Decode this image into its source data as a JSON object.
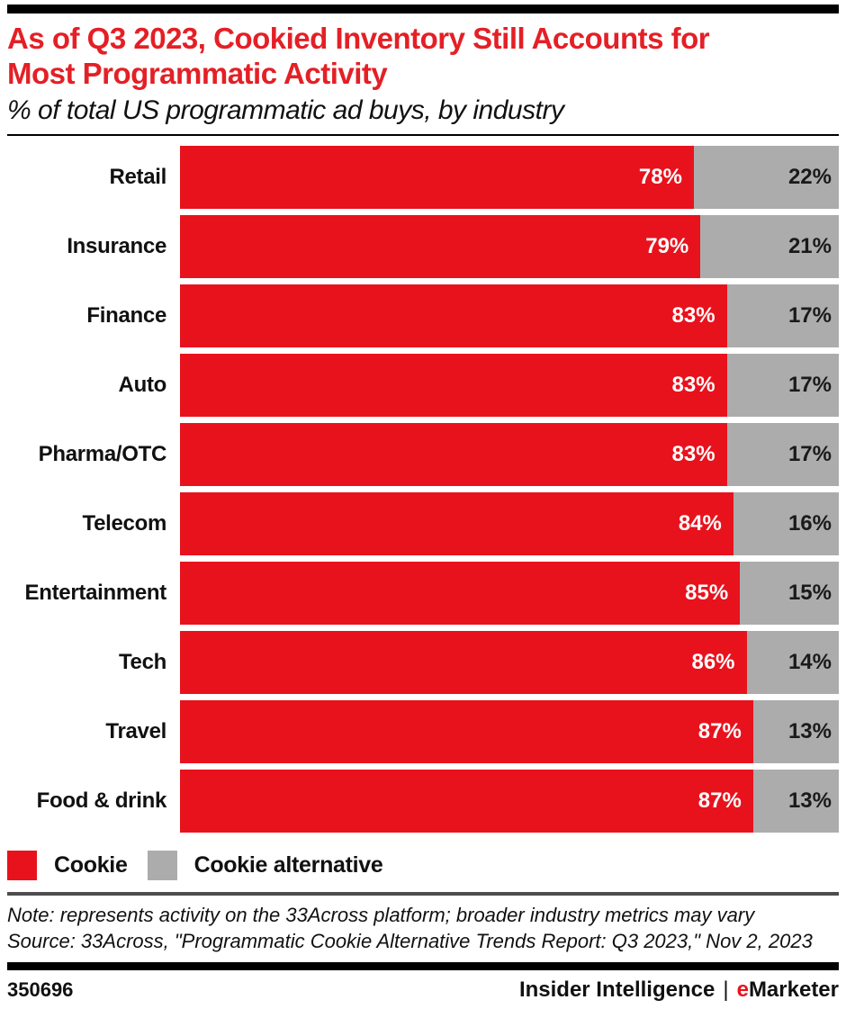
{
  "header": {
    "title_line1": "As of Q3 2023, Cookied Inventory Still Accounts for",
    "title_line2": "Most Programmatic Activity",
    "subtitle": "% of total US programmatic ad buys, by industry"
  },
  "chart_data": {
    "type": "bar",
    "orientation": "horizontal",
    "stacked": true,
    "title": "As of Q3 2023, Cookied Inventory Still Accounts for Most Programmatic Activity",
    "subtitle": "% of total US programmatic ad buys, by industry",
    "categories": [
      "Retail",
      "Insurance",
      "Finance",
      "Auto",
      "Pharma/OTC",
      "Telecom",
      "Entertainment",
      "Tech",
      "Travel",
      "Food & drink"
    ],
    "series": [
      {
        "name": "Cookie",
        "color": "#E8121D",
        "values": [
          78,
          79,
          83,
          83,
          83,
          84,
          85,
          86,
          87,
          87
        ]
      },
      {
        "name": "Cookie alternative",
        "color": "#ACACAC",
        "values": [
          22,
          21,
          17,
          17,
          17,
          16,
          15,
          14,
          13,
          13
        ]
      }
    ],
    "value_suffix": "%",
    "xlim": [
      0,
      100
    ],
    "grid": false,
    "legend_position": "bottom"
  },
  "legend": [
    {
      "label": "Cookie",
      "color": "#E8121D"
    },
    {
      "label": "Cookie alternative",
      "color": "#ACACAC"
    }
  ],
  "notes": {
    "note": "Note: represents activity on the 33Across platform; broader industry metrics may vary",
    "source": "Source: 33Across, \"Programmatic Cookie Alternative Trends Report: Q3 2023,\" Nov 2, 2023"
  },
  "footer": {
    "chart_id": "350696",
    "brand_primary": "Insider Intelligence",
    "separator": "|",
    "brand_secondary_prefix": "e",
    "brand_secondary_rest": "Marketer"
  },
  "colors": {
    "title_red": "#E32026",
    "bar_red": "#E8121D",
    "bar_gray": "#ACACAC",
    "top_bar": "#000000",
    "mid_rule": "#4D4D4D"
  }
}
